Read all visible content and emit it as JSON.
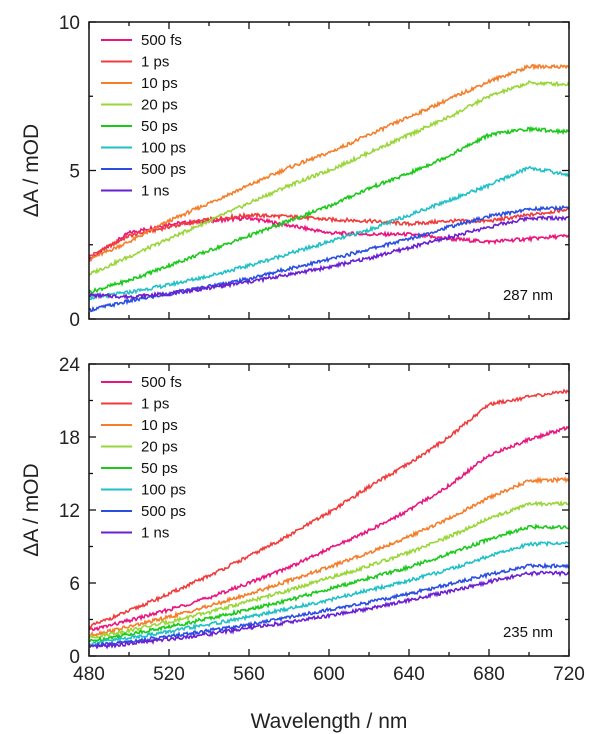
{
  "chart_data": [
    {
      "type": "line",
      "annotation": "287 nm",
      "ylabel": "ΔA / mOD",
      "xlabel": "",
      "xlim": [
        480,
        720
      ],
      "ylim": [
        0,
        10
      ],
      "yticks": [
        0,
        5,
        10
      ],
      "xticks": [
        480,
        520,
        560,
        600,
        640,
        680,
        720
      ],
      "show_xtick_labels": false,
      "legend_position": "top-left",
      "x": [
        480,
        500,
        520,
        540,
        560,
        580,
        600,
        620,
        640,
        660,
        680,
        700,
        720
      ],
      "series": [
        {
          "name": "500 fs",
          "color": "#e8177e",
          "values": [
            2.0,
            2.9,
            3.2,
            3.3,
            3.4,
            3.15,
            2.9,
            2.85,
            2.85,
            2.7,
            2.6,
            2.7,
            2.8
          ]
        },
        {
          "name": "1 ps",
          "color": "#f03c3c",
          "values": [
            2.1,
            2.8,
            3.1,
            3.35,
            3.5,
            3.45,
            3.35,
            3.3,
            3.2,
            3.3,
            3.3,
            3.5,
            3.7
          ]
        },
        {
          "name": "10 ps",
          "color": "#f47e2a",
          "values": [
            2.0,
            2.6,
            3.3,
            3.9,
            4.5,
            5.1,
            5.6,
            6.2,
            6.8,
            7.4,
            8.0,
            8.5,
            8.5
          ]
        },
        {
          "name": "20 ps",
          "color": "#99d639",
          "values": [
            1.5,
            2.1,
            2.7,
            3.3,
            3.9,
            4.5,
            5.0,
            5.6,
            6.2,
            6.8,
            7.5,
            7.95,
            7.9
          ]
        },
        {
          "name": "50 ps",
          "color": "#1bc91b",
          "values": [
            0.9,
            1.3,
            1.8,
            2.3,
            2.8,
            3.3,
            3.8,
            4.4,
            4.9,
            5.5,
            6.2,
            6.4,
            6.3
          ]
        },
        {
          "name": "100 ps",
          "color": "#21c0c6",
          "values": [
            0.7,
            0.9,
            1.15,
            1.45,
            1.8,
            2.2,
            2.6,
            3.0,
            3.5,
            4.0,
            4.5,
            5.1,
            4.85
          ]
        },
        {
          "name": "500 ps",
          "color": "#2a4fe0",
          "values": [
            0.3,
            0.6,
            0.85,
            1.1,
            1.35,
            1.7,
            2.0,
            2.35,
            2.7,
            3.1,
            3.45,
            3.7,
            3.75
          ]
        },
        {
          "name": "1 ns",
          "color": "#6a1fd0",
          "values": [
            0.8,
            0.75,
            0.85,
            1.05,
            1.25,
            1.5,
            1.75,
            2.05,
            2.4,
            2.75,
            3.1,
            3.4,
            3.4
          ]
        }
      ]
    },
    {
      "type": "line",
      "annotation": "235 nm",
      "ylabel": "ΔA / mOD",
      "xlabel": "Wavelength / nm",
      "xlim": [
        480,
        720
      ],
      "ylim": [
        0,
        24
      ],
      "yticks": [
        0,
        6,
        12,
        18,
        24
      ],
      "xticks": [
        480,
        520,
        560,
        600,
        640,
        680,
        720
      ],
      "show_xtick_labels": true,
      "legend_position": "top-left",
      "x": [
        480,
        500,
        520,
        540,
        560,
        580,
        600,
        620,
        640,
        660,
        680,
        700,
        720
      ],
      "series": [
        {
          "name": "500 fs",
          "color": "#e8177e",
          "values": [
            2.1,
            2.9,
            3.8,
            4.8,
            6.0,
            7.3,
            8.8,
            10.3,
            12.0,
            14.0,
            16.5,
            17.8,
            18.8
          ]
        },
        {
          "name": "1 ps",
          "color": "#f03c3c",
          "values": [
            2.4,
            3.7,
            5.1,
            6.6,
            8.2,
            9.9,
            11.8,
            13.9,
            15.8,
            18.0,
            20.7,
            21.3,
            21.8
          ]
        },
        {
          "name": "10 ps",
          "color": "#f47e2a",
          "values": [
            1.7,
            2.4,
            3.2,
            4.1,
            5.1,
            6.2,
            7.3,
            8.5,
            9.8,
            11.3,
            13.0,
            14.4,
            14.5
          ]
        },
        {
          "name": "20 ps",
          "color": "#99d639",
          "values": [
            1.5,
            2.1,
            2.8,
            3.6,
            4.5,
            5.4,
            6.4,
            7.4,
            8.5,
            9.8,
            11.3,
            12.5,
            12.5
          ]
        },
        {
          "name": "50 ps",
          "color": "#1bc91b",
          "values": [
            1.2,
            1.8,
            2.4,
            3.1,
            3.8,
            4.6,
            5.5,
            6.4,
            7.3,
            8.4,
            9.6,
            10.6,
            10.6
          ]
        },
        {
          "name": "100 ps",
          "color": "#21c0c6",
          "values": [
            1.0,
            1.5,
            2.0,
            2.6,
            3.2,
            3.9,
            4.6,
            5.4,
            6.2,
            7.1,
            8.2,
            9.2,
            9.3
          ]
        },
        {
          "name": "500 ps",
          "color": "#2a4fe0",
          "values": [
            0.8,
            1.2,
            1.6,
            2.1,
            2.6,
            3.2,
            3.8,
            4.4,
            5.1,
            5.9,
            6.7,
            7.4,
            7.4
          ]
        },
        {
          "name": "1 ns",
          "color": "#6a1fd0",
          "values": [
            0.7,
            1.0,
            1.4,
            1.8,
            2.3,
            2.8,
            3.3,
            3.9,
            4.6,
            5.3,
            6.1,
            6.8,
            6.8
          ]
        }
      ]
    }
  ]
}
